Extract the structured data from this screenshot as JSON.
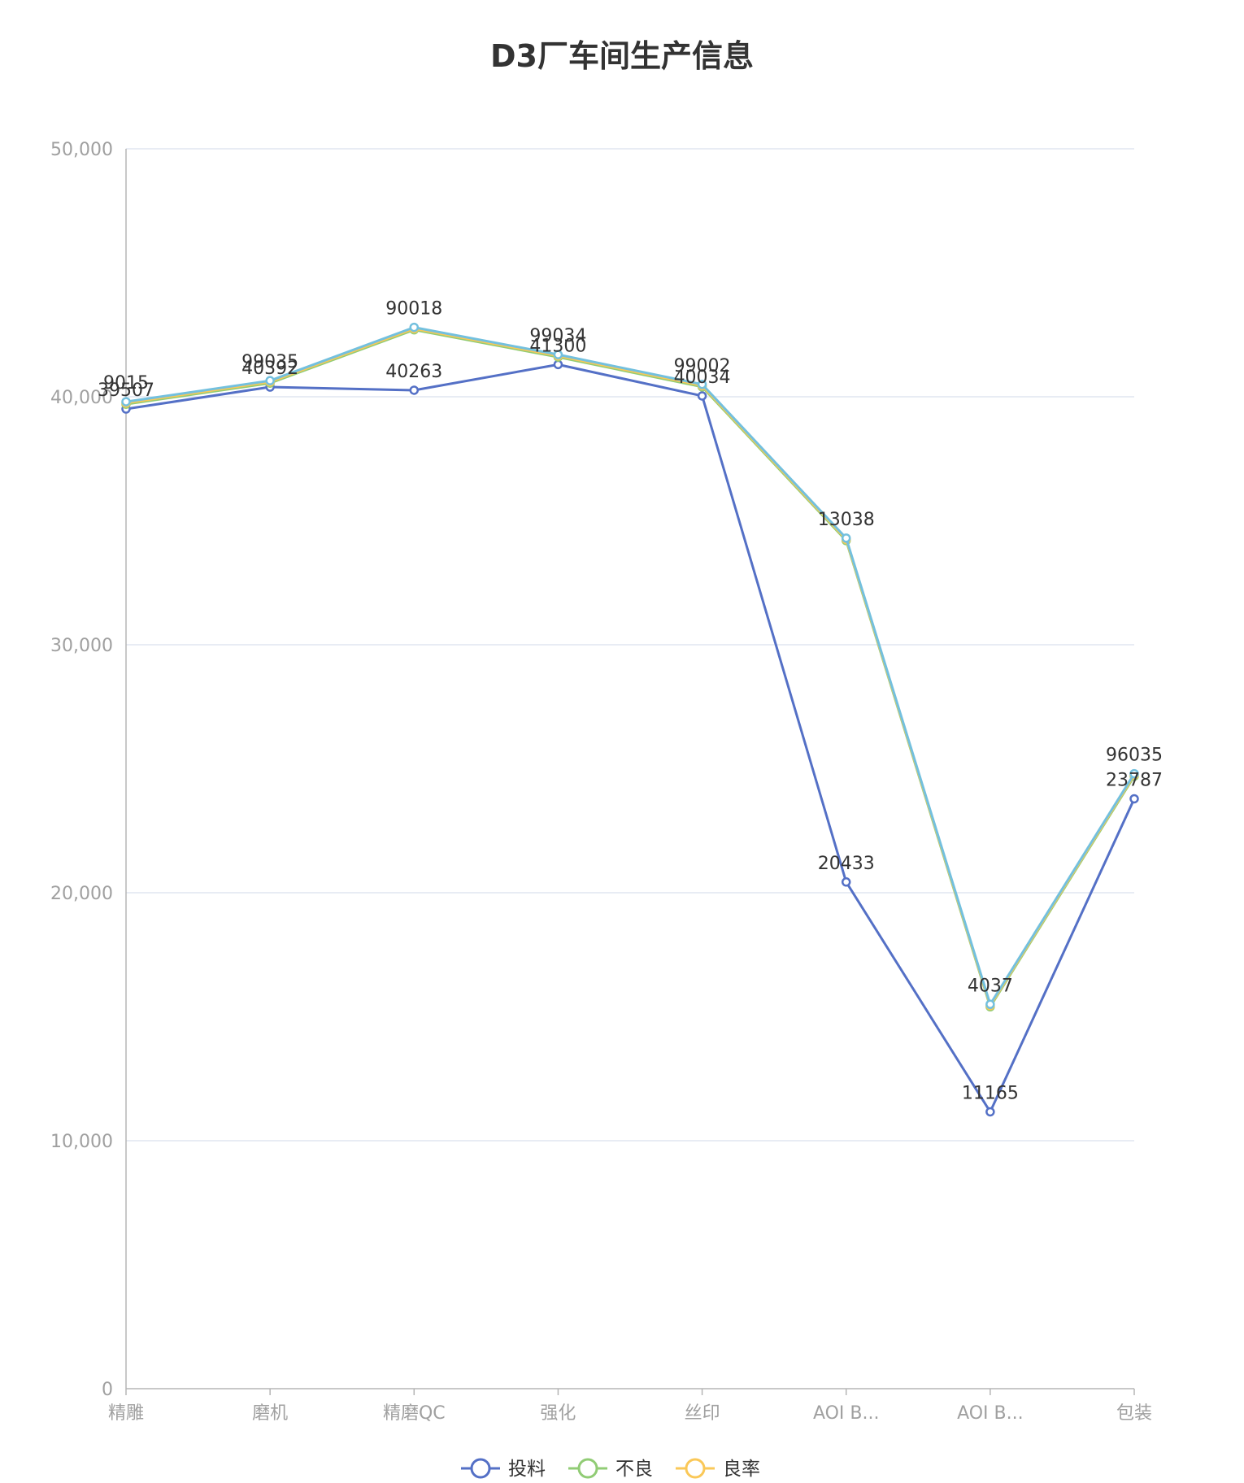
{
  "chart_data": {
    "type": "line",
    "title": "D3厂车间生产信息",
    "categories": [
      "精雕",
      "磨机",
      "精磨QC",
      "强化",
      "丝印",
      "AOI B...",
      "AOI B...",
      "包装"
    ],
    "yticks": [
      "0",
      "10,000",
      "20,000",
      "30,000",
      "40,000",
      "50,000"
    ],
    "ylim": [
      0,
      50000
    ],
    "grid": true,
    "legend_position": "bottom-center",
    "series": [
      {
        "name": "投料",
        "color": "#5470c6",
        "values": [
          39507,
          40392,
          40263,
          41300,
          40034,
          20433,
          11165,
          23787
        ],
        "labels": [
          "39507",
          "40392",
          "40263",
          "41300",
          "40034",
          "20433",
          "11165",
          "23787"
        ]
      },
      {
        "name": "不良",
        "color": "#91cc75",
        "values": [
          39700,
          40550,
          42700,
          41600,
          40400,
          34200,
          15400,
          24700
        ],
        "labels": [
          "",
          "",
          "",
          "",
          "",
          "",
          "",
          ""
        ]
      },
      {
        "name": "良率",
        "color": "#fac858",
        "values": [
          39750,
          40600,
          42750,
          41650,
          40450,
          34250,
          15450,
          24750
        ],
        "labels": [
          "",
          "",
          "",
          "",
          "",
          "",
          "",
          ""
        ]
      },
      {
        "name": "",
        "color": "#73c0de",
        "values": [
          39800,
          40650,
          42800,
          41700,
          40500,
          34300,
          15500,
          24800
        ],
        "labels": [
          "9015",
          "99035",
          "90018",
          "99034",
          "99002",
          "13038",
          "4037",
          "96035"
        ]
      }
    ]
  }
}
